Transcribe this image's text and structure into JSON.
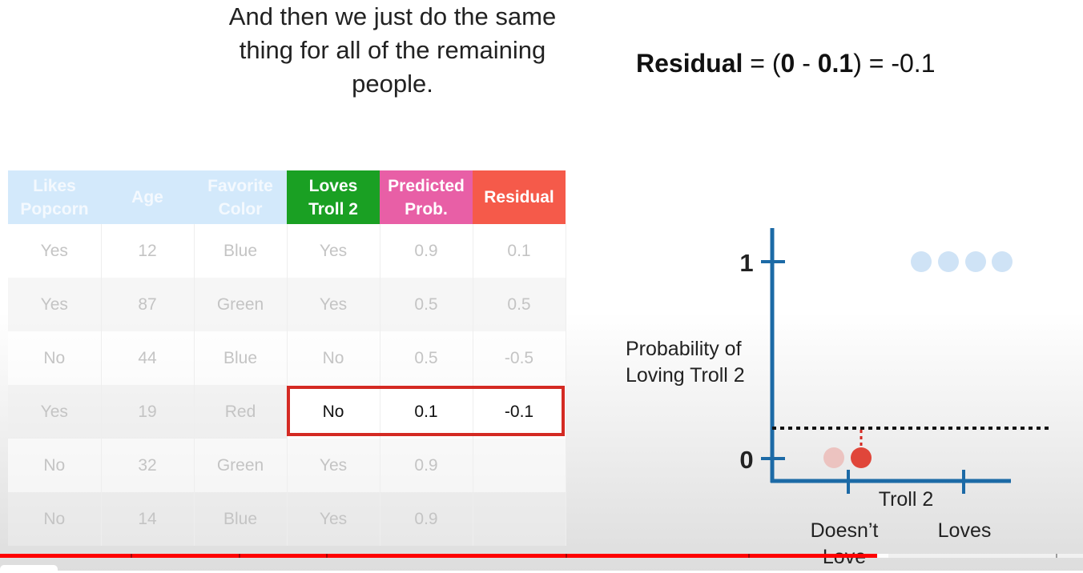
{
  "caption": {
    "line1": "And then we just do the same",
    "line2": "thing for all of the remaining",
    "line3": "people."
  },
  "formula": {
    "word": "Residual",
    "eq": " = (",
    "observed": "0",
    "minus": " - ",
    "predicted": "0.1",
    "close": ") = ",
    "result": "-0.1"
  },
  "table": {
    "headers": [
      {
        "line1": "Likes",
        "line2": "Popcorn"
      },
      {
        "line1": "Age",
        "line2": ""
      },
      {
        "line1": "Favorite",
        "line2": "Color"
      },
      {
        "line1": "Loves",
        "line2": "Troll 2"
      },
      {
        "line1": "Predicted",
        "line2": "Prob."
      },
      {
        "line1": "Residual",
        "line2": ""
      }
    ],
    "rows": [
      [
        "Yes",
        "12",
        "Blue",
        "Yes",
        "0.9",
        "0.1"
      ],
      [
        "Yes",
        "87",
        "Green",
        "Yes",
        "0.5",
        "0.5"
      ],
      [
        "No",
        "44",
        "Blue",
        "No",
        "0.5",
        "-0.5"
      ],
      [
        "Yes",
        "19",
        "Red",
        "No",
        "0.1",
        "-0.1"
      ],
      [
        "No",
        "32",
        "Green",
        "Yes",
        "0.9",
        ""
      ],
      [
        "No",
        "14",
        "Blue",
        "Yes",
        "0.9",
        ""
      ]
    ],
    "highlight_row": 3
  },
  "plot": {
    "y_tick_1": "1",
    "y_tick_0": "0",
    "ylabel_line1": "Probability of",
    "ylabel_line2": "Loving Troll 2",
    "xlabel": "Troll 2",
    "x_tick_a_line1": "Doesn’t",
    "x_tick_a_line2": "Love",
    "x_tick_b": "Loves",
    "prediction_line": 0.1,
    "points_loves": 4,
    "colors": {
      "axis": "#1c6aa6",
      "point_faded": "#cfe3f6",
      "point_current": "#e0463a",
      "point_prev": "#ecc3c0",
      "residual": "#d42a23"
    }
  },
  "video": {
    "progress_percent": 81,
    "buffered_percent": 82
  }
}
